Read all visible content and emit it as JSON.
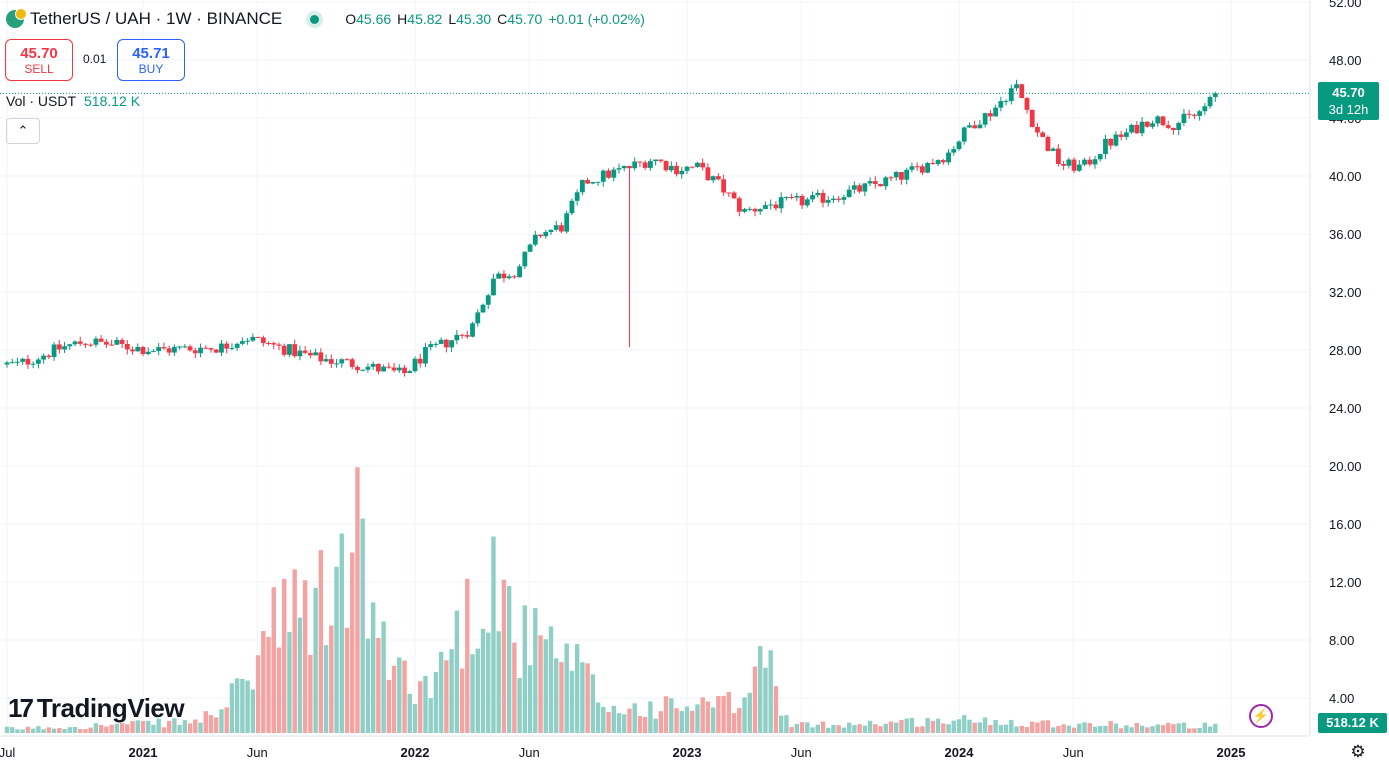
{
  "header": {
    "symbol": "TetherUS / UAH · 1W · BINANCE",
    "ohlc": [
      {
        "k": "O",
        "v": "45.66"
      },
      {
        "k": "H",
        "v": "45.82"
      },
      {
        "k": "L",
        "v": "45.30"
      },
      {
        "k": "C",
        "v": "45.70"
      }
    ],
    "change": "+0.01 (+0.02%)"
  },
  "trade": {
    "sell_price": "45.70",
    "sell_label": "SELL",
    "spread": "0.01",
    "buy_price": "45.71",
    "buy_label": "BUY"
  },
  "volume_legend": {
    "label": "Vol · USDT",
    "value": "518.12 K"
  },
  "last_price": {
    "price": "45.70",
    "countdown": "3d 12h"
  },
  "volume_tag": "518.12 K",
  "logo_text": "TradingView",
  "colors": {
    "up": "#089981",
    "down": "#f23645",
    "vol_up": "#8fcfc6",
    "vol_down": "#f4a3a3",
    "grid": "#f0f3fa"
  },
  "icons": [
    "tether-icon",
    "live-dot-icon",
    "chevron-up-icon",
    "lightning-icon",
    "settings-icon"
  ],
  "chart_data": {
    "type": "candlestick",
    "y_axis": {
      "labels": [
        "52.00",
        "48.00",
        "44.00",
        "40.00",
        "36.00",
        "32.00",
        "28.00",
        "24.00",
        "20.00",
        "16.00",
        "12.00",
        "8.00",
        "4.00"
      ]
    },
    "x_axis": {
      "labels": [
        "Jul",
        "2021",
        "Jun",
        "2022",
        "Jun",
        "2023",
        "Jun",
        "2024",
        "Jun",
        "2025"
      ]
    },
    "last_close": 45.7,
    "price_keypoints": [
      {
        "date": "2020-07",
        "close": 27.0
      },
      {
        "date": "2020-09",
        "close": 28.2
      },
      {
        "date": "2020-10",
        "close": 28.6
      },
      {
        "date": "2021-01",
        "close": 28.0
      },
      {
        "date": "2021-04",
        "close": 28.2
      },
      {
        "date": "2021-05",
        "close": 28.9
      },
      {
        "date": "2021-08",
        "close": 27.5
      },
      {
        "date": "2021-10",
        "close": 27.0
      },
      {
        "date": "2021-12",
        "close": 26.3
      },
      {
        "date": "2022-01",
        "close": 27.8
      },
      {
        "date": "2022-02",
        "close": 28.6
      },
      {
        "date": "2022-03",
        "close": 29.5
      },
      {
        "date": "2022-04",
        "close": 33.0
      },
      {
        "date": "2022-05",
        "close": 33.5
      },
      {
        "date": "2022-06",
        "close": 36.0
      },
      {
        "date": "2022-07",
        "close": 36.5
      },
      {
        "date": "2022-08",
        "close": 39.6
      },
      {
        "date": "2022-10",
        "close": 40.6
      },
      {
        "date": "2022-11",
        "close": 41.2
      },
      {
        "date": "2022-12",
        "close": 40.5
      },
      {
        "date": "2023-01",
        "close": 40.6
      },
      {
        "date": "2023-02",
        "close": 39.3
      },
      {
        "date": "2023-03",
        "close": 37.5
      },
      {
        "date": "2023-04",
        "close": 38.0
      },
      {
        "date": "2023-06",
        "close": 38.3
      },
      {
        "date": "2023-08",
        "close": 39.0
      },
      {
        "date": "2023-10",
        "close": 40.0
      },
      {
        "date": "2023-12",
        "close": 41.5
      },
      {
        "date": "2024-01",
        "close": 43.5
      },
      {
        "date": "2024-02",
        "close": 44.5
      },
      {
        "date": "2024-03",
        "close": 46.3
      },
      {
        "date": "2024-04",
        "close": 43.0
      },
      {
        "date": "2024-05",
        "close": 40.8
      },
      {
        "date": "2024-06",
        "close": 40.6
      },
      {
        "date": "2024-07",
        "close": 42.2
      },
      {
        "date": "2024-08",
        "close": 43.0
      },
      {
        "date": "2024-09",
        "close": 44.0
      },
      {
        "date": "2024-10",
        "close": 43.6
      },
      {
        "date": "2024-11",
        "close": 44.2
      },
      {
        "date": "2024-12",
        "close": 45.7
      }
    ],
    "spike_low": {
      "date": "2022-10",
      "low": 28.2
    },
    "volume_keypoints_millions": [
      {
        "date": "2020-07",
        "volume": 0.3
      },
      {
        "date": "2021-03",
        "volume": 0.8
      },
      {
        "date": "2021-05",
        "volume": 3.0
      },
      {
        "date": "2021-06",
        "volume": 7.0
      },
      {
        "date": "2021-09",
        "volume": 9.5
      },
      {
        "date": "2021-10",
        "volume": 13.5
      },
      {
        "date": "2021-11",
        "volume": 5.5
      },
      {
        "date": "2022-01",
        "volume": 3.0
      },
      {
        "date": "2022-03",
        "volume": 8.5
      },
      {
        "date": "2022-04",
        "volume": 11.5
      },
      {
        "date": "2022-05",
        "volume": 6.5
      },
      {
        "date": "2022-06",
        "volume": 6.0
      },
      {
        "date": "2022-08",
        "volume": 4.0
      },
      {
        "date": "2022-09",
        "volume": 1.6
      },
      {
        "date": "2022-12",
        "volume": 1.8
      },
      {
        "date": "2023-03",
        "volume": 2.0
      },
      {
        "date": "2023-04",
        "volume": 5.5
      },
      {
        "date": "2023-05",
        "volume": 0.5
      },
      {
        "date": "2024-01",
        "volume": 0.9
      },
      {
        "date": "2024-06",
        "volume": 0.6
      },
      {
        "date": "2024-12",
        "volume": 0.5
      }
    ],
    "last_volume": "518.12 K"
  }
}
